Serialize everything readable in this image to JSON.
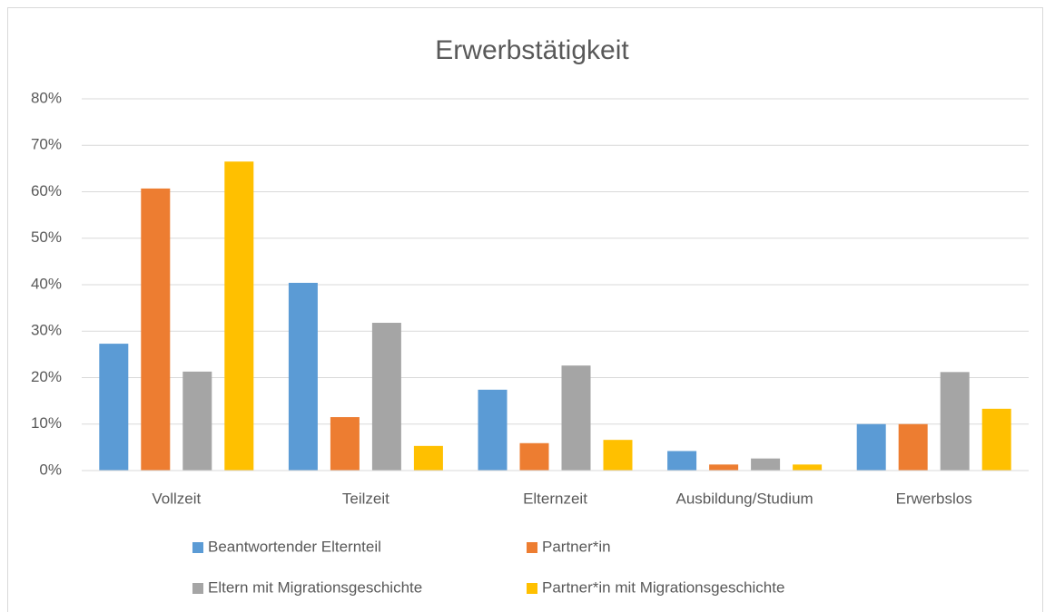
{
  "chart_data": {
    "type": "bar",
    "title": "Erwerbstätigkeit",
    "categories": [
      "Vollzeit",
      "Teilzeit",
      "Elternzeit",
      "Ausbildung/Studium",
      "Erwerbslos"
    ],
    "series": [
      {
        "name": "Beantwortender Elternteil",
        "color": "#5b9bd5",
        "values": [
          27.3,
          40.4,
          17.4,
          4.2,
          10
        ]
      },
      {
        "name": "Partner*in",
        "color": "#ed7d31",
        "values": [
          60.7,
          11.5,
          5.9,
          1.3,
          10
        ]
      },
      {
        "name": "Eltern mit Migrationsgeschichte",
        "color": "#a5a5a5",
        "values": [
          21.3,
          31.8,
          22.6,
          2.6,
          21.2
        ]
      },
      {
        "name": "Partner*in mit Migrationsgeschichte",
        "color": "#ffc000",
        "values": [
          66.5,
          5.3,
          6.6,
          1.3,
          13.3
        ]
      }
    ],
    "ylim": [
      0,
      80
    ],
    "yticks": [
      {
        "value": 0,
        "label": "0%"
      },
      {
        "value": 10,
        "label": "10%"
      },
      {
        "value": 20,
        "label": "20%"
      },
      {
        "value": 30,
        "label": "30%"
      },
      {
        "value": 40,
        "label": "40%"
      },
      {
        "value": 50,
        "label": "50%"
      },
      {
        "value": 60,
        "label": "60%"
      },
      {
        "value": 70,
        "label": "70%"
      },
      {
        "value": 80,
        "label": "80%"
      }
    ],
    "grid": true,
    "legend": "bottom"
  }
}
